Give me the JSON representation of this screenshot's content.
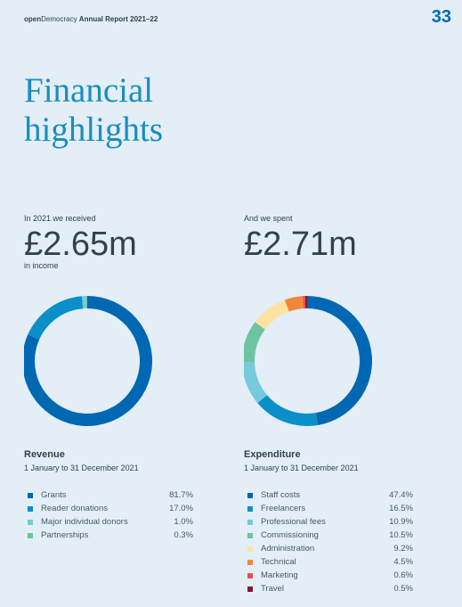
{
  "header": {
    "brand_bold": "open",
    "brand": "Democracy",
    "report": "Annual Report 2021–22",
    "page": "33"
  },
  "title": "Financial highlights",
  "chart_data": [
    {
      "type": "pie",
      "intro": "In 2021 we received",
      "amount": "£2.65m",
      "note": "in income",
      "title": "Revenue",
      "subtitle": "1 January to 31 December 2021",
      "categories": [
        "Grants",
        "Reader donations",
        "Major individual donors",
        "Partnerships"
      ],
      "values": [
        81.7,
        17.0,
        1.0,
        0.3
      ],
      "value_labels": [
        "81.7%",
        "17.0%",
        "1.0%",
        "0.3%"
      ],
      "colors": [
        "#0068b3",
        "#0a8fc8",
        "#77c9dc",
        "#6cc5a0"
      ]
    },
    {
      "type": "pie",
      "intro": "And we spent",
      "amount": "£2.71m",
      "title": "Expenditure",
      "subtitle": "1 January to 31 December 2021",
      "categories": [
        "Staff costs",
        "Freelancers",
        "Professional fees",
        "Commissioning",
        "Administration",
        "Technical",
        "Marketing",
        "Travel"
      ],
      "values": [
        47.4,
        16.5,
        10.9,
        10.5,
        9.2,
        4.5,
        0.6,
        0.5
      ],
      "value_labels": [
        "47.4%",
        "16.5%",
        "10.9%",
        "10.5%",
        "9.2%",
        "4.5%",
        "0.6%",
        "0.5%"
      ],
      "colors": [
        "#0068b3",
        "#0a8fc8",
        "#77c9dc",
        "#6cc5a0",
        "#fde3a0",
        "#f0883a",
        "#e8505b",
        "#7b1a3b"
      ]
    }
  ]
}
